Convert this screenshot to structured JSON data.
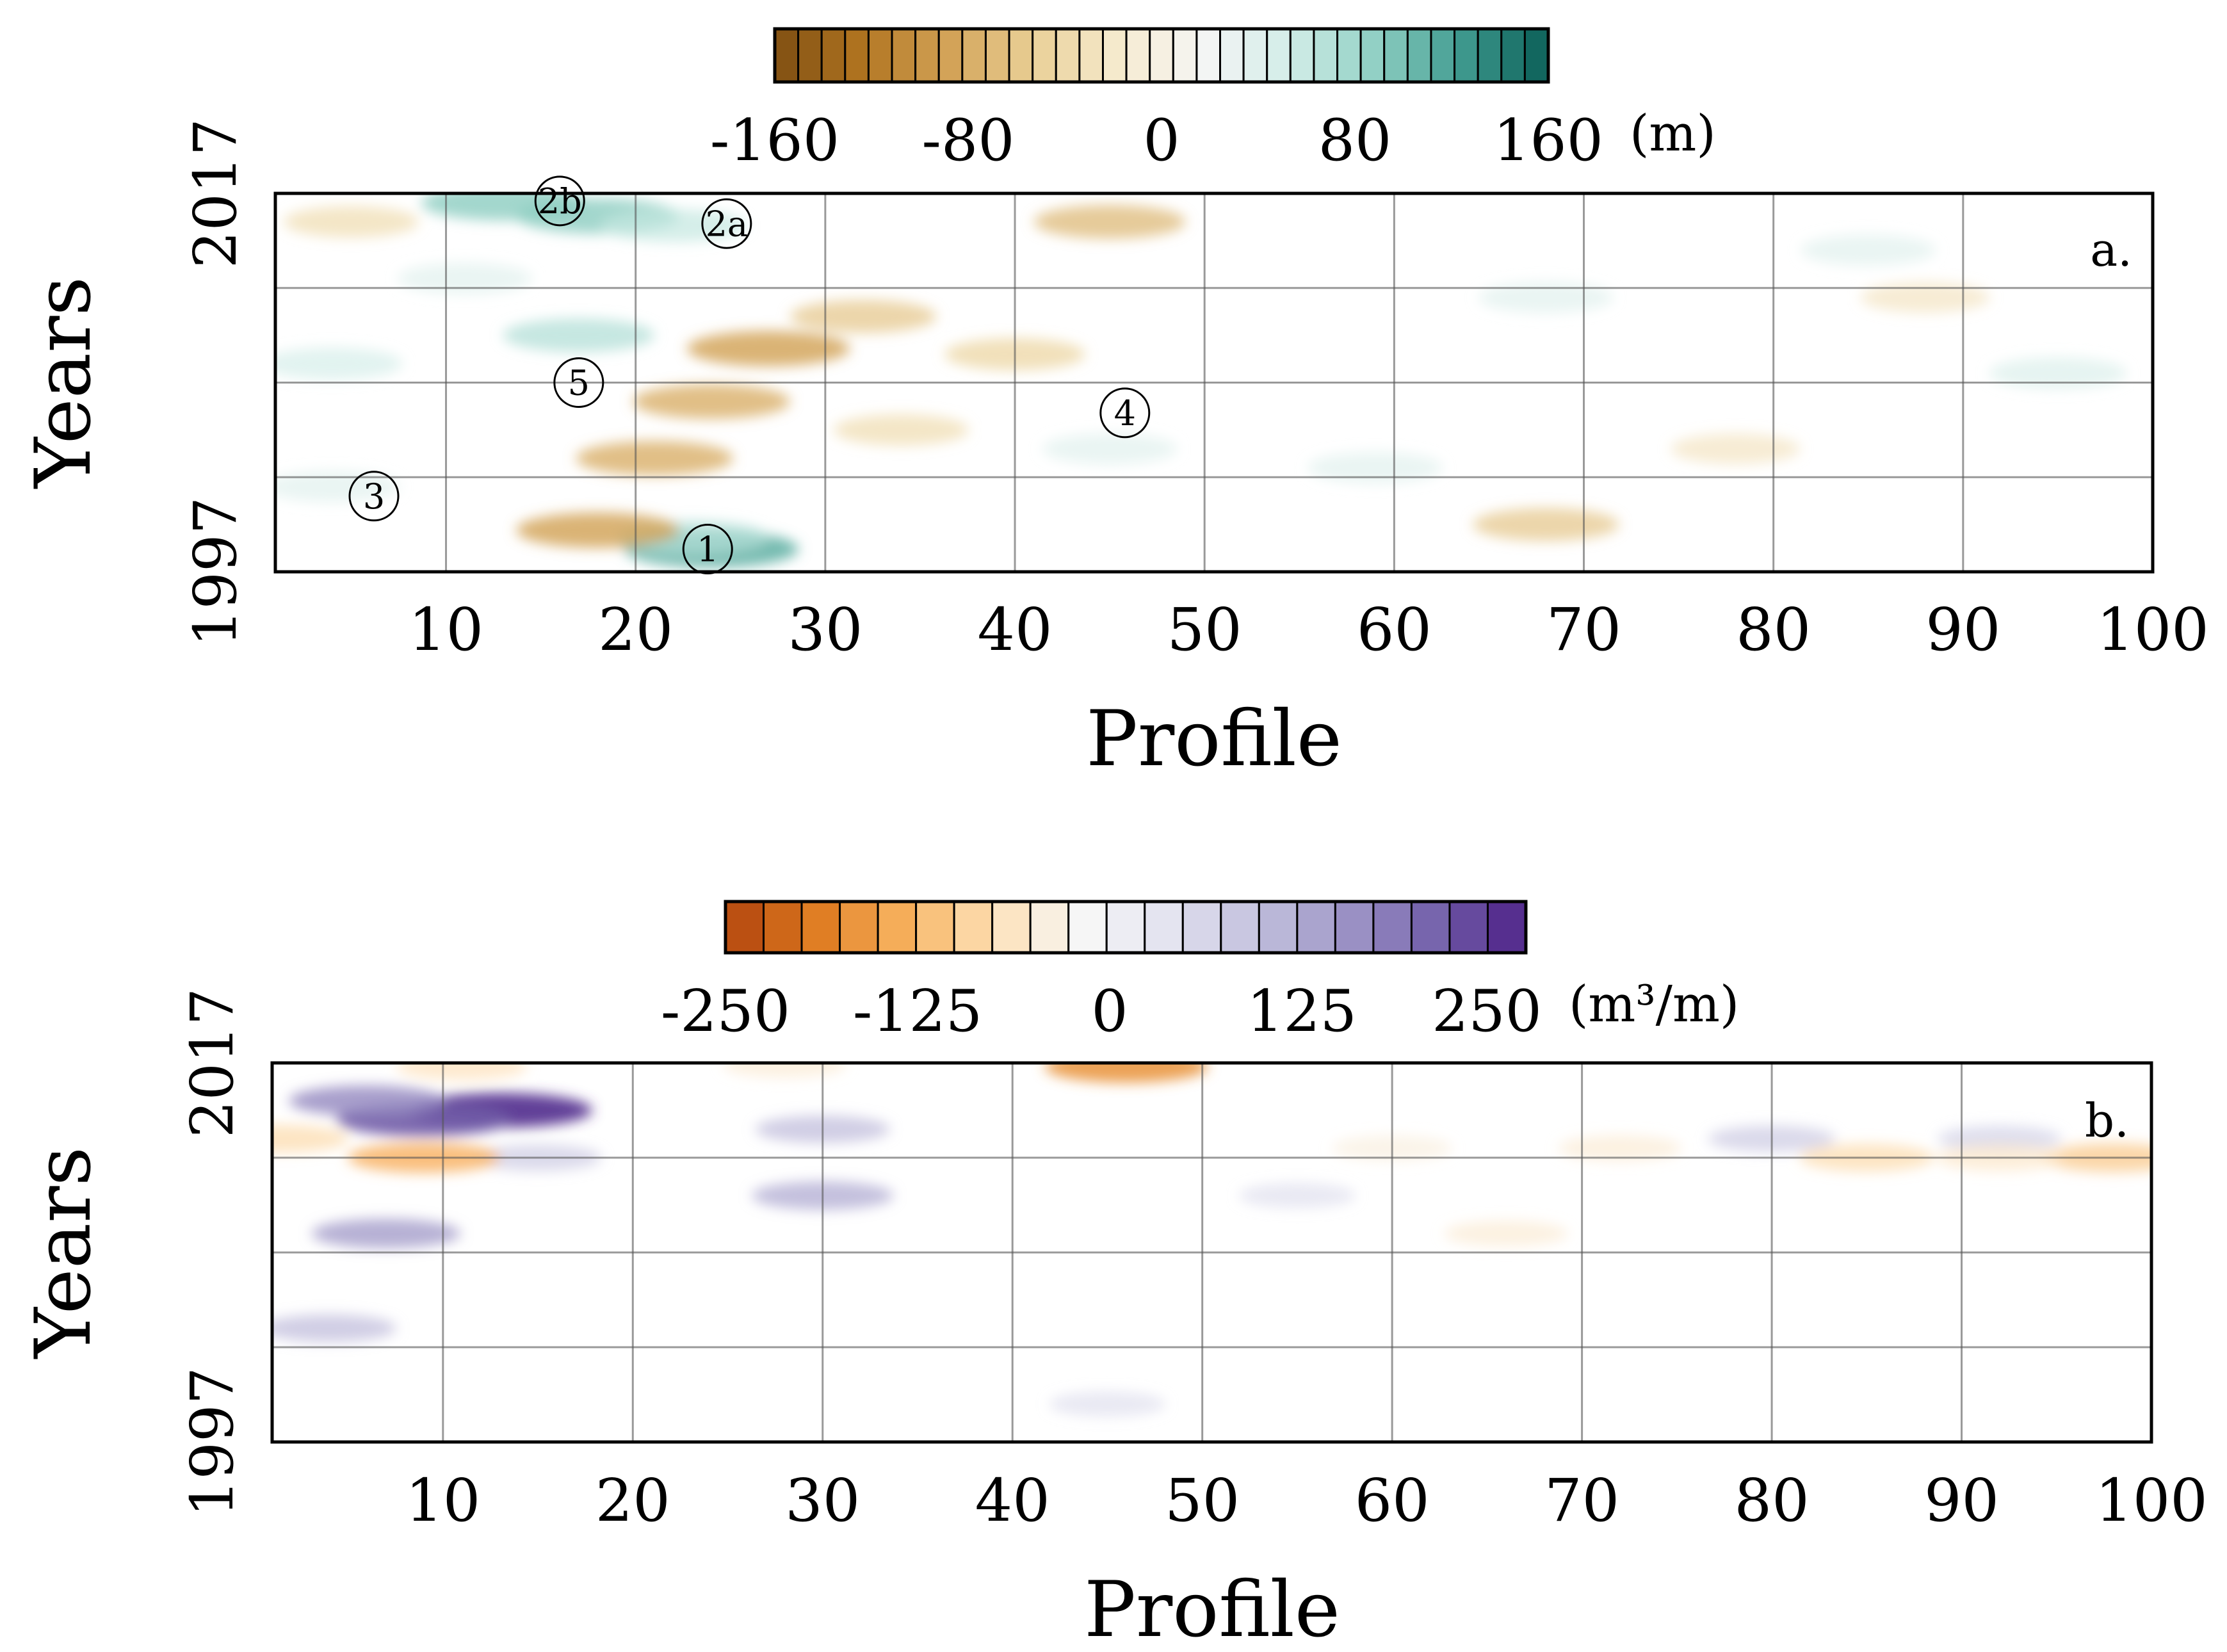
{
  "chart_data": [
    {
      "type": "heatmap",
      "panel_label": "a.",
      "title": "",
      "xlabel": "Profile",
      "ylabel": "Years",
      "xlim": [
        1,
        100
      ],
      "ylim": [
        1997,
        2017
      ],
      "x_ticks": [
        10,
        20,
        30,
        40,
        50,
        60,
        70,
        80,
        90,
        100
      ],
      "y_ticks": [
        1997,
        2017
      ],
      "grid": true,
      "colorbar": {
        "position": "top",
        "range": [
          -160,
          160
        ],
        "ticks": [
          -160,
          -80,
          0,
          80,
          160
        ],
        "tick_labels": [
          "-160",
          "-80",
          "0",
          "80",
          "160"
        ],
        "unit": "(m)",
        "colors": [
          "#7f4f12",
          "#b07420",
          "#d2a155",
          "#e9cf96",
          "#f6ebcf",
          "#f5f5f5",
          "#d2ede8",
          "#8fcfc3",
          "#3f9a8f",
          "#0b5f57"
        ]
      },
      "markers": [
        {
          "label": "1",
          "x": 23.8,
          "year": 1998.2
        },
        {
          "label": "2a",
          "x": 24.8,
          "year": 2015.4
        },
        {
          "label": "2b",
          "x": 16.0,
          "year": 2016.6
        },
        {
          "label": "3",
          "x": 6.2,
          "year": 2001.0
        },
        {
          "label": "4",
          "x": 45.8,
          "year": 2005.4
        },
        {
          "label": "5",
          "x": 17.0,
          "year": 2007.0
        }
      ],
      "features": [
        {
          "x": 24,
          "year": 1998.2,
          "value": 110
        },
        {
          "x": 23,
          "year": 1998.8,
          "value": 70
        },
        {
          "x": 13,
          "year": 2016.5,
          "value": 90
        },
        {
          "x": 18,
          "year": 2015.8,
          "value": 90
        },
        {
          "x": 22,
          "year": 2015.3,
          "value": 60
        },
        {
          "x": 17,
          "year": 2009.5,
          "value": 70
        },
        {
          "x": 4,
          "year": 2008.0,
          "value": 50
        },
        {
          "x": 4,
          "year": 2001.5,
          "value": 40
        },
        {
          "x": 11,
          "year": 2012.5,
          "value": 40
        },
        {
          "x": 45,
          "year": 2003.5,
          "value": 40
        },
        {
          "x": 68,
          "year": 2011.5,
          "value": 40
        },
        {
          "x": 85,
          "year": 2014.0,
          "value": 40
        },
        {
          "x": 95,
          "year": 2007.5,
          "value": 45
        },
        {
          "x": 59,
          "year": 2002.5,
          "value": 40
        },
        {
          "x": 27,
          "year": 2008.8,
          "value": -90
        },
        {
          "x": 24,
          "year": 2006.0,
          "value": -80
        },
        {
          "x": 32,
          "year": 2010.5,
          "value": -60
        },
        {
          "x": 45,
          "year": 2015.5,
          "value": -70
        },
        {
          "x": 21,
          "year": 2003.0,
          "value": -80
        },
        {
          "x": 18,
          "year": 1999.2,
          "value": -90
        },
        {
          "x": 34,
          "year": 2004.5,
          "value": -40
        },
        {
          "x": 68,
          "year": 1999.5,
          "value": -60
        },
        {
          "x": 5,
          "year": 2015.5,
          "value": -40
        },
        {
          "x": 40,
          "year": 2008.5,
          "value": -50
        },
        {
          "x": 78,
          "year": 2003.5,
          "value": -30
        },
        {
          "x": 88,
          "year": 2011.5,
          "value": -30
        }
      ]
    },
    {
      "type": "heatmap",
      "panel_label": "b.",
      "title": "",
      "xlabel": "Profile",
      "ylabel": "Years",
      "xlim": [
        1,
        100
      ],
      "ylim": [
        1997,
        2017
      ],
      "x_ticks": [
        10,
        20,
        30,
        40,
        50,
        60,
        70,
        80,
        90,
        100
      ],
      "y_ticks": [
        1997,
        2017
      ],
      "grid": true,
      "colorbar": {
        "position": "top",
        "range": [
          -250,
          250
        ],
        "ticks": [
          -250,
          -125,
          0,
          125,
          250
        ],
        "tick_labels": [
          "-250",
          "-125",
          "0",
          "125",
          "250"
        ],
        "unit": "(m³/m)",
        "colors": [
          "#b1440e",
          "#de7a1f",
          "#f7b15e",
          "#fde0b6",
          "#f7f7f7",
          "#e2e2ef",
          "#c2c0dd",
          "#9d94c6",
          "#7461ab",
          "#4e2187"
        ]
      },
      "features": [
        {
          "x": 13,
          "year": 2014.5,
          "value": 230
        },
        {
          "x": 9,
          "year": 2014.0,
          "value": 200
        },
        {
          "x": 6,
          "year": 2015.0,
          "value": 150
        },
        {
          "x": 7,
          "year": 2008.0,
          "value": 130
        },
        {
          "x": 4,
          "year": 2003.0,
          "value": 90
        },
        {
          "x": 30,
          "year": 2010.0,
          "value": 110
        },
        {
          "x": 30,
          "year": 2013.5,
          "value": 90
        },
        {
          "x": 15,
          "year": 2012.0,
          "value": 70
        },
        {
          "x": 80,
          "year": 2013.0,
          "value": 70
        },
        {
          "x": 45,
          "year": 1999.0,
          "value": 40
        },
        {
          "x": 92,
          "year": 2013.0,
          "value": 60
        },
        {
          "x": 55,
          "year": 2010.0,
          "value": 40
        },
        {
          "x": 46,
          "year": 2016.8,
          "value": -170
        },
        {
          "x": 9,
          "year": 2012.0,
          "value": -140
        },
        {
          "x": 85,
          "year": 2012.0,
          "value": -90
        },
        {
          "x": 98,
          "year": 2012.0,
          "value": -110
        },
        {
          "x": 92,
          "year": 2012.0,
          "value": -70
        },
        {
          "x": 11,
          "year": 2016.8,
          "value": -80
        },
        {
          "x": 1.5,
          "year": 2013.0,
          "value": -90
        },
        {
          "x": 72,
          "year": 2012.5,
          "value": -60
        },
        {
          "x": 60,
          "year": 2012.5,
          "value": -50
        },
        {
          "x": 28,
          "year": 2016.9,
          "value": -60
        },
        {
          "x": 66,
          "year": 2008.0,
          "value": -60
        }
      ]
    }
  ]
}
